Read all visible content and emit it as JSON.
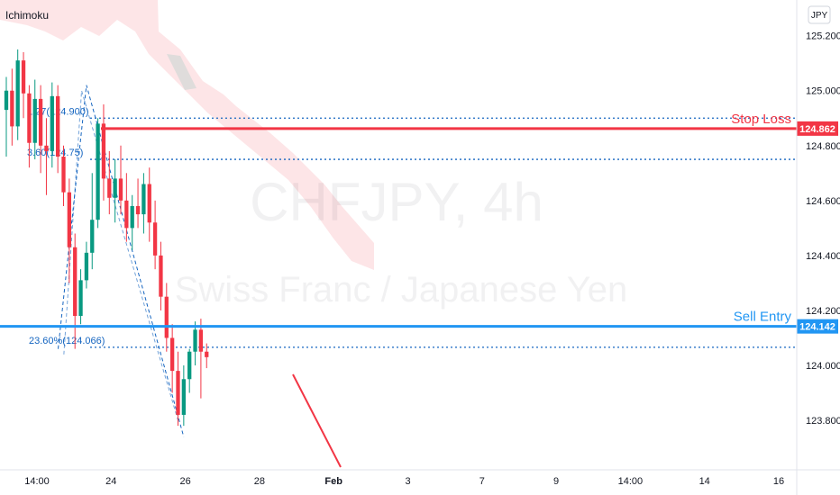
{
  "chart_data": {
    "type": "candlestick",
    "indicator": "Ichimoku",
    "currency": "JPY",
    "watermark": {
      "line1": "CHFJPY, 4h",
      "line2": "Swiss Franc / Japanese Yen"
    },
    "y_axis": {
      "range": [
        123.62,
        125.33
      ],
      "ticks": [
        "125.200",
        "125.000",
        "124.800",
        "124.600",
        "124.400",
        "124.200",
        "124.000",
        "123.800"
      ]
    },
    "x_axis": {
      "ticks": [
        "14:00",
        "24",
        "26",
        "28",
        "Feb",
        "3",
        "7",
        "9",
        "14:00",
        "14",
        "16"
      ]
    },
    "candles": [
      {
        "o": 124.93,
        "h": 125.05,
        "l": 124.76,
        "c": 125.0
      },
      {
        "o": 125.0,
        "h": 125.08,
        "l": 124.8,
        "c": 124.87
      },
      {
        "o": 124.87,
        "h": 125.15,
        "l": 124.82,
        "c": 125.11
      },
      {
        "o": 125.11,
        "h": 125.14,
        "l": 124.9,
        "c": 124.99
      },
      {
        "o": 124.99,
        "h": 125.02,
        "l": 124.72,
        "c": 124.81
      },
      {
        "o": 124.81,
        "h": 125.04,
        "l": 124.75,
        "c": 124.97
      },
      {
        "o": 124.97,
        "h": 125.02,
        "l": 124.7,
        "c": 124.8
      },
      {
        "o": 124.8,
        "h": 124.9,
        "l": 124.62,
        "c": 124.78
      },
      {
        "o": 124.78,
        "h": 125.03,
        "l": 124.72,
        "c": 124.98
      },
      {
        "o": 124.98,
        "h": 125.02,
        "l": 124.7,
        "c": 124.76
      },
      {
        "o": 124.76,
        "h": 124.8,
        "l": 124.58,
        "c": 124.63
      },
      {
        "o": 124.63,
        "h": 124.68,
        "l": 124.3,
        "c": 124.43
      },
      {
        "o": 124.43,
        "h": 124.48,
        "l": 124.06,
        "c": 124.18
      },
      {
        "o": 124.18,
        "h": 124.35,
        "l": 124.15,
        "c": 124.31
      },
      {
        "o": 124.31,
        "h": 124.45,
        "l": 124.28,
        "c": 124.41
      },
      {
        "o": 124.41,
        "h": 124.7,
        "l": 124.35,
        "c": 124.53
      },
      {
        "o": 124.53,
        "h": 124.9,
        "l": 124.5,
        "c": 124.88
      },
      {
        "o": 124.88,
        "h": 124.95,
        "l": 124.6,
        "c": 124.68
      },
      {
        "o": 124.68,
        "h": 124.78,
        "l": 124.55,
        "c": 124.61
      },
      {
        "o": 124.61,
        "h": 124.75,
        "l": 124.52,
        "c": 124.68
      },
      {
        "o": 124.68,
        "h": 124.8,
        "l": 124.55,
        "c": 124.6
      },
      {
        "o": 124.6,
        "h": 124.7,
        "l": 124.45,
        "c": 124.5
      },
      {
        "o": 124.5,
        "h": 124.62,
        "l": 124.42,
        "c": 124.58
      },
      {
        "o": 124.58,
        "h": 124.68,
        "l": 124.5,
        "c": 124.55
      },
      {
        "o": 124.55,
        "h": 124.7,
        "l": 124.48,
        "c": 124.66
      },
      {
        "o": 124.66,
        "h": 124.72,
        "l": 124.45,
        "c": 124.52
      },
      {
        "o": 124.52,
        "h": 124.6,
        "l": 124.35,
        "c": 124.4
      },
      {
        "o": 124.4,
        "h": 124.45,
        "l": 124.2,
        "c": 124.25
      },
      {
        "o": 124.25,
        "h": 124.3,
        "l": 124.05,
        "c": 124.1
      },
      {
        "o": 124.1,
        "h": 124.15,
        "l": 123.9,
        "c": 123.98
      },
      {
        "o": 123.98,
        "h": 124.05,
        "l": 123.78,
        "c": 123.82
      },
      {
        "o": 123.82,
        "h": 124.0,
        "l": 123.78,
        "c": 123.95
      },
      {
        "o": 123.95,
        "h": 124.06,
        "l": 123.9,
        "c": 124.05
      },
      {
        "o": 124.05,
        "h": 124.16,
        "l": 124.0,
        "c": 124.13
      },
      {
        "o": 124.13,
        "h": 124.17,
        "l": 123.88,
        "c": 124.05
      },
      {
        "o": 124.05,
        "h": 124.08,
        "l": 123.99,
        "c": 124.03
      }
    ],
    "levels": [
      {
        "name": "Stop Loss",
        "value": 124.862,
        "label": "124.862",
        "color": "#f23645"
      },
      {
        "name": "Sell Entry",
        "value": 124.142,
        "label": "124.142",
        "color": "#2196f3"
      }
    ],
    "fib_levels": [
      {
        "label": "1.27(124.900)",
        "value": 124.9
      },
      {
        "label": "3.60(124.75)",
        "value": 124.75
      },
      {
        "label": "23.60%(124.066)",
        "value": 124.066
      }
    ],
    "colors": {
      "up": "#089981",
      "down": "#f23645",
      "cloud": "#f23645",
      "fib": "#1565c0"
    }
  }
}
